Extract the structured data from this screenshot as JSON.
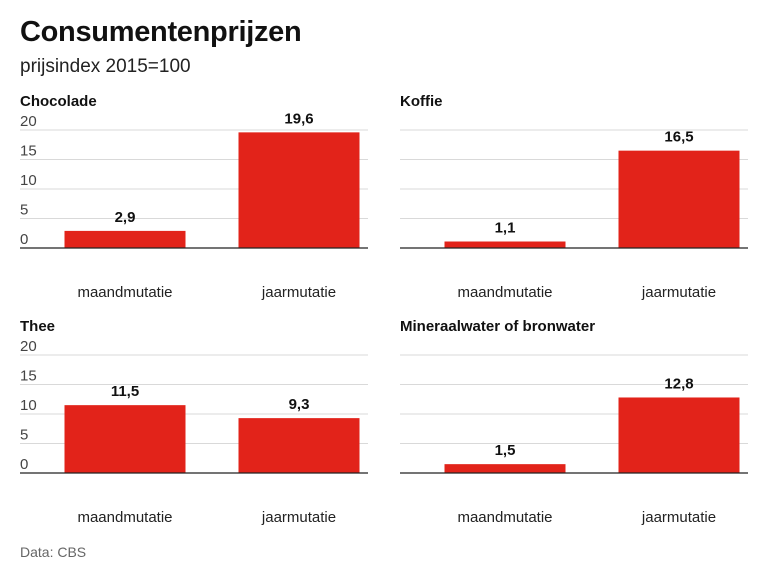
{
  "header": {
    "title": "Consumentenprijzen",
    "subtitle": "prijsindex 2015=100"
  },
  "footer": {
    "source": "Data: CBS"
  },
  "colors": {
    "bar": "#e2231a",
    "grid": "#d9d9d9",
    "axis": "#222222"
  },
  "chart_data": [
    {
      "type": "bar",
      "title": "Chocolade",
      "categories": [
        "maandmutatie",
        "jaarmutatie"
      ],
      "values": [
        2.9,
        19.6
      ],
      "value_labels": [
        "2,9",
        "19,6"
      ],
      "ylim": [
        0,
        20
      ],
      "yticks": [
        0,
        5,
        10,
        15,
        20
      ],
      "ytick_labels": [
        "0",
        "5",
        "10",
        "15",
        "20"
      ],
      "show_yaxis_labels": true,
      "grid": true
    },
    {
      "type": "bar",
      "title": "Koffie",
      "categories": [
        "maandmutatie",
        "jaarmutatie"
      ],
      "values": [
        1.1,
        16.5
      ],
      "value_labels": [
        "1,1",
        "16,5"
      ],
      "ylim": [
        0,
        20
      ],
      "yticks": [
        0,
        5,
        10,
        15,
        20
      ],
      "show_yaxis_labels": false,
      "grid": true
    },
    {
      "type": "bar",
      "title": "Thee",
      "categories": [
        "maandmutatie",
        "jaarmutatie"
      ],
      "values": [
        11.5,
        9.3
      ],
      "value_labels": [
        "11,5",
        "9,3"
      ],
      "ylim": [
        0,
        20
      ],
      "yticks": [
        0,
        5,
        10,
        15,
        20
      ],
      "ytick_labels": [
        "0",
        "5",
        "10",
        "15",
        "20"
      ],
      "show_yaxis_labels": true,
      "grid": true
    },
    {
      "type": "bar",
      "title": "Mineraalwater of bronwater",
      "categories": [
        "maandmutatie",
        "jaarmutatie"
      ],
      "values": [
        1.5,
        12.8
      ],
      "value_labels": [
        "1,5",
        "12,8"
      ],
      "ylim": [
        0,
        20
      ],
      "yticks": [
        0,
        5,
        10,
        15,
        20
      ],
      "show_yaxis_labels": false,
      "grid": true
    }
  ]
}
